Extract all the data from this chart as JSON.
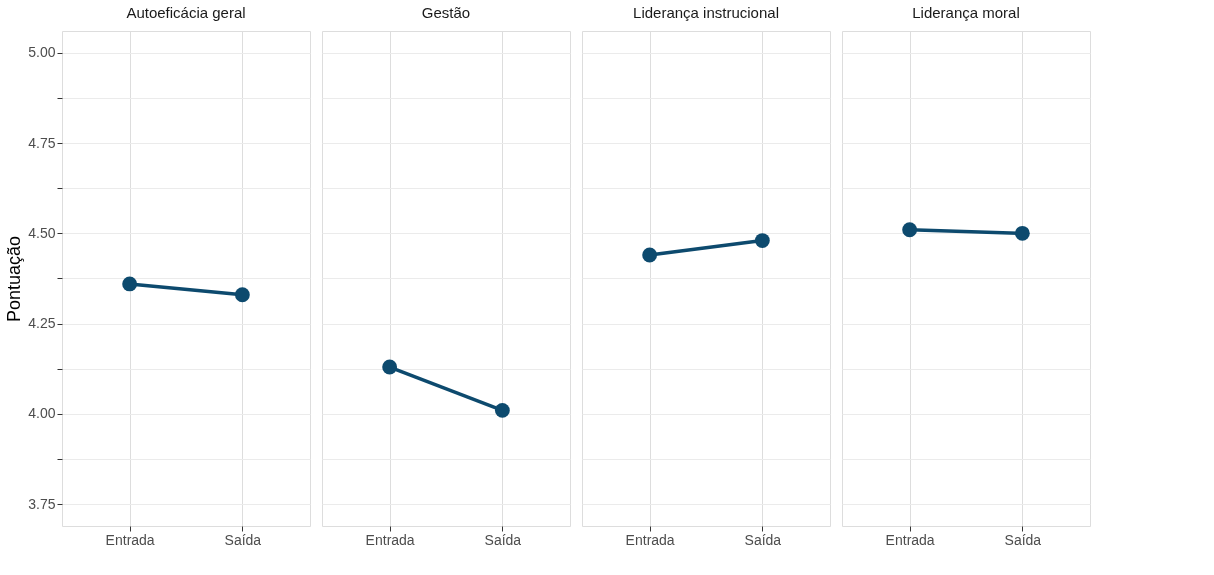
{
  "chart_data": [
    {
      "type": "line",
      "title": "Autoeficácia geral",
      "ylabel": "Pontuação",
      "categories": [
        "Entrada",
        "Saída"
      ],
      "series": [
        {
          "color": "#0d4a6e",
          "values": [
            4.36,
            4.33
          ]
        }
      ],
      "ylim": [
        3.69,
        5.06
      ],
      "yticks": [
        {
          "value": 3.75,
          "label": "3.75"
        },
        {
          "value": 3.875,
          "label": null
        },
        {
          "value": 4.0,
          "label": "4.00"
        },
        {
          "value": 4.125,
          "label": null
        },
        {
          "value": 4.25,
          "label": "4.25"
        },
        {
          "value": 4.375,
          "label": null
        },
        {
          "value": 4.5,
          "label": "4.50"
        },
        {
          "value": 4.625,
          "label": null
        },
        {
          "value": 4.75,
          "label": "4.75"
        },
        {
          "value": 4.875,
          "label": null
        },
        {
          "value": 5.0,
          "label": "5.00"
        }
      ],
      "grid": true,
      "marker": "circle",
      "line_style": "solid"
    },
    {
      "type": "line",
      "title": "Gestão",
      "categories": [
        "Entrada",
        "Saída"
      ],
      "series": [
        {
          "color": "#0d4a6e",
          "values": [
            4.13,
            4.01
          ]
        }
      ],
      "ylim": [
        3.69,
        5.06
      ],
      "tick_labels": "x",
      "grid": true,
      "marker": "circle",
      "line_style": "solid"
    },
    {
      "type": "line",
      "title": "Liderança instrucional",
      "categories": [
        "Entrada",
        "Saída"
      ],
      "series": [
        {
          "color": "#0d4a6e",
          "values": [
            4.44,
            4.48
          ]
        }
      ],
      "ylim": [
        3.69,
        5.06
      ],
      "tick_labels": "x",
      "grid": true,
      "marker": "circle",
      "line_style": "solid"
    },
    {
      "type": "line",
      "title": "Liderança moral",
      "categories": [
        "Entrada",
        "Saída"
      ],
      "series": [
        {
          "color": "#0d4a6e",
          "values": [
            4.51,
            4.5
          ]
        }
      ],
      "ylim": [
        3.69,
        5.06
      ],
      "tick_labels": "x",
      "grid": true,
      "marker": "circle",
      "line_style": "solid"
    }
  ]
}
